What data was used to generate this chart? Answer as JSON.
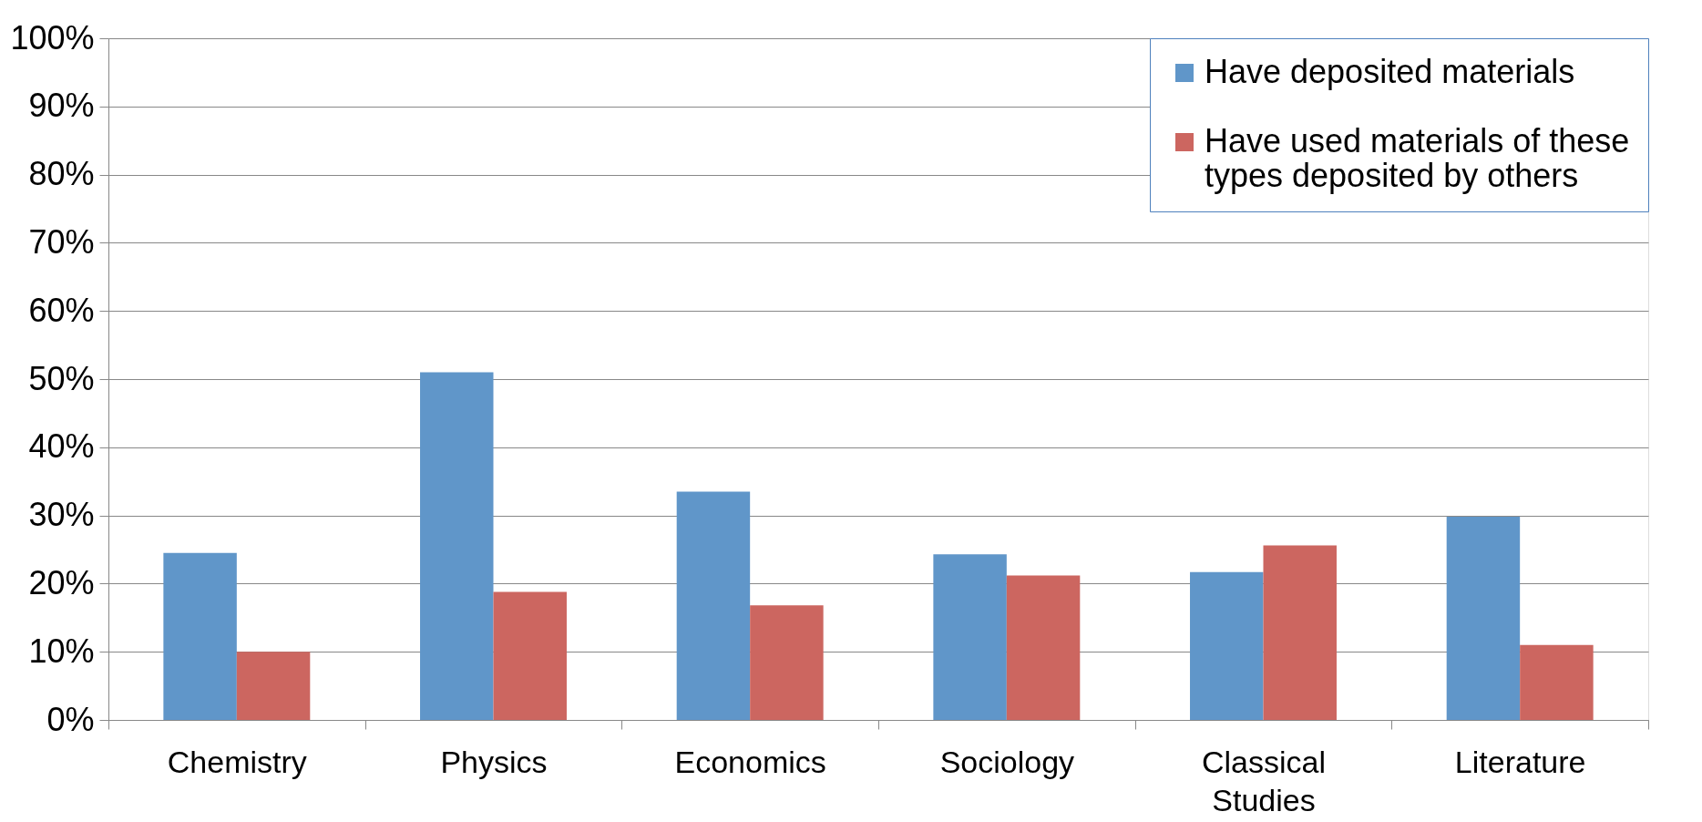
{
  "chart_data": {
    "type": "bar",
    "categories": [
      "Chemistry",
      "Physics",
      "Economics",
      "Sociology",
      "Classical Studies",
      "Literature"
    ],
    "series": [
      {
        "name": "Have deposited materials",
        "color": "#6096c9",
        "values": [
          24.5,
          51,
          33.5,
          24.3,
          21.7,
          29.8
        ]
      },
      {
        "name": "Have used materials of these types deposited by others",
        "color": "#cc6660",
        "values": [
          10,
          18.8,
          16.8,
          21.2,
          25.6,
          11
        ]
      }
    ],
    "ylim": [
      0,
      100
    ],
    "yticks": [
      {
        "value": 0,
        "label": "0%"
      },
      {
        "value": 10,
        "label": "10%"
      },
      {
        "value": 20,
        "label": "20%"
      },
      {
        "value": 30,
        "label": "30%"
      },
      {
        "value": 40,
        "label": "40%"
      },
      {
        "value": 50,
        "label": "50%"
      },
      {
        "value": 60,
        "label": "60%"
      },
      {
        "value": 70,
        "label": "70%"
      },
      {
        "value": 80,
        "label": "80%"
      },
      {
        "value": 90,
        "label": "90%"
      },
      {
        "value": 100,
        "label": "100%"
      }
    ],
    "grid": "y",
    "legend": "top right"
  }
}
